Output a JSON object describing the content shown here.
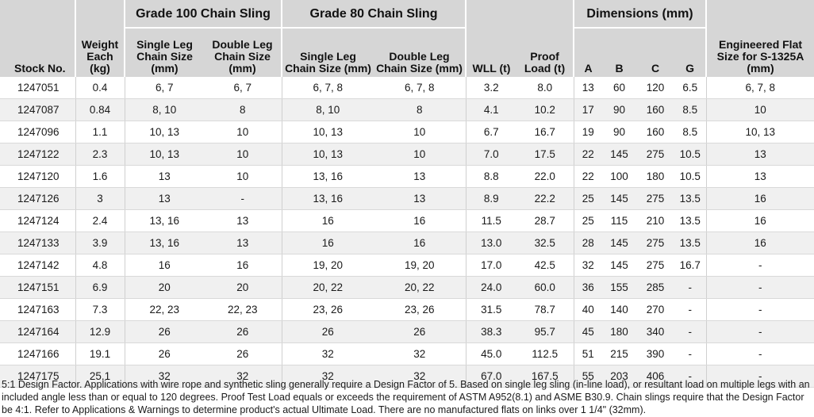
{
  "headers": {
    "stock_no": "Stock No.",
    "weight_each": "Weight Each (kg)",
    "grade100": "Grade 100 Chain Sling",
    "grade80": "Grade 80 Chain Sling",
    "g100_single": "Single Leg Chain Size (mm)",
    "g100_double": "Double Leg Chain Size (mm)",
    "g80_single": "Single Leg Chain Size (mm)",
    "g80_double": "Double Leg Chain Size (mm)",
    "wll": "WLL (t)",
    "proof_load": "Proof Load (t)",
    "dimensions": "Dimensions (mm)",
    "dim_a": "A",
    "dim_b": "B",
    "dim_c": "C",
    "dim_g": "G",
    "flat_size": "Engineered Flat Size for S-1325A (mm)"
  },
  "rows": [
    [
      "1247051",
      "0.4",
      "6, 7",
      "6, 7",
      "6, 7, 8",
      "6, 7, 8",
      "3.2",
      "8.0",
      "13",
      "60",
      "120",
      "6.5",
      "6, 7, 8"
    ],
    [
      "1247087",
      "0.84",
      "8, 10",
      "8",
      "8, 10",
      "8",
      "4.1",
      "10.2",
      "17",
      "90",
      "160",
      "8.5",
      "10"
    ],
    [
      "1247096",
      "1.1",
      "10, 13",
      "10",
      "10, 13",
      "10",
      "6.7",
      "16.7",
      "19",
      "90",
      "160",
      "8.5",
      "10, 13"
    ],
    [
      "1247122",
      "2.3",
      "10, 13",
      "10",
      "10, 13",
      "10",
      "7.0",
      "17.5",
      "22",
      "145",
      "275",
      "10.5",
      "13"
    ],
    [
      "1247120",
      "1.6",
      "13",
      "10",
      "13, 16",
      "13",
      "8.8",
      "22.0",
      "22",
      "100",
      "180",
      "10.5",
      "13"
    ],
    [
      "1247126",
      "3",
      "13",
      "-",
      "13, 16",
      "13",
      "8.9",
      "22.2",
      "25",
      "145",
      "275",
      "13.5",
      "16"
    ],
    [
      "1247124",
      "2.4",
      "13, 16",
      "13",
      "16",
      "16",
      "11.5",
      "28.7",
      "25",
      "115",
      "210",
      "13.5",
      "16"
    ],
    [
      "1247133",
      "3.9",
      "13, 16",
      "13",
      "16",
      "16",
      "13.0",
      "32.5",
      "28",
      "145",
      "275",
      "13.5",
      "16"
    ],
    [
      "1247142",
      "4.8",
      "16",
      "16",
      "19, 20",
      "19, 20",
      "17.0",
      "42.5",
      "32",
      "145",
      "275",
      "16.7",
      "-"
    ],
    [
      "1247151",
      "6.9",
      "20",
      "20",
      "20, 22",
      "20, 22",
      "24.0",
      "60.0",
      "36",
      "155",
      "285",
      "-",
      "-"
    ],
    [
      "1247163",
      "7.3",
      "22, 23",
      "22, 23",
      "23, 26",
      "23, 26",
      "31.5",
      "78.7",
      "40",
      "140",
      "270",
      "-",
      "-"
    ],
    [
      "1247164",
      "12.9",
      "26",
      "26",
      "26",
      "26",
      "38.3",
      "95.7",
      "45",
      "180",
      "340",
      "-",
      "-"
    ],
    [
      "1247166",
      "19.1",
      "26",
      "26",
      "32",
      "32",
      "45.0",
      "112.5",
      "51",
      "215",
      "390",
      "-",
      "-"
    ],
    [
      "1247175",
      "25.1",
      "32",
      "32",
      "32",
      "32",
      "67.0",
      "167.5",
      "55",
      "203",
      "406",
      "-",
      "-"
    ]
  ],
  "footnote": "5:1 Design Factor.  Applications with wire rope and synthetic sling generally require a Design Factor of 5.  Based on single leg sling (in-line load), or resultant load on multiple legs with an included angle less than or equal to 120 degrees.  Proof Test Load equals or exceeds the requirement of ASTM A952(8.1) and ASME B30.9.  Chain slings require that the Design Factor be 4:1.  Refer to Applications & Warnings to determine product's actual Ultimate Load.  There are no manufactured flats on links over 1 1/4\" (32mm)."
}
